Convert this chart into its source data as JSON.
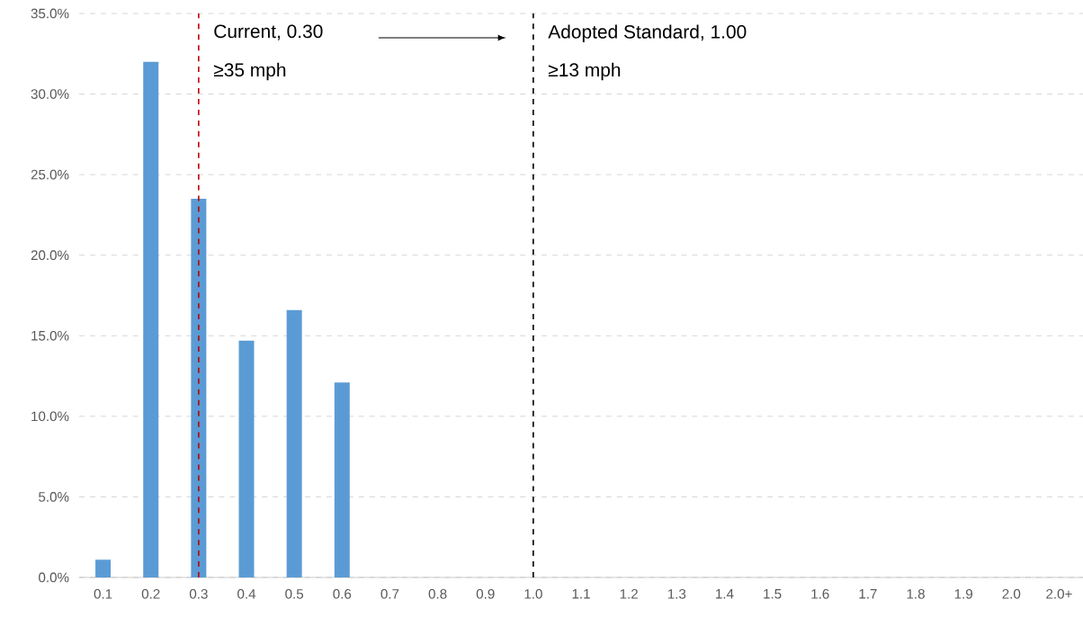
{
  "chart_data": {
    "type": "bar",
    "x": [
      0.1,
      0.2,
      0.3,
      0.4,
      0.5,
      0.6,
      0.7,
      0.8,
      0.9,
      1.0,
      1.1,
      1.2,
      1.3,
      1.4,
      1.5,
      1.6,
      1.7,
      1.8,
      1.9,
      2.0,
      2.1
    ],
    "values": [
      1.1,
      32.0,
      23.5,
      14.7,
      16.6,
      12.1,
      0,
      0,
      0,
      0,
      0,
      0,
      0,
      0,
      0,
      0,
      0,
      0,
      0,
      0,
      0
    ],
    "color": "#5b9bd5",
    "xlim": [
      0.05,
      2.15
    ],
    "xticks": [
      0.1,
      0.2,
      0.3,
      0.4,
      0.5,
      0.6,
      0.7,
      0.8,
      0.9,
      {
        "value": 1.0,
        "label": "1.0"
      },
      1.1,
      1.2,
      1.3,
      1.4,
      1.5,
      1.6,
      1.7,
      1.8,
      1.9,
      {
        "value": 2.0,
        "label": "2.0"
      },
      {
        "value": 2.1,
        "label": "2.0+"
      }
    ],
    "ylim": [
      0,
      35
    ],
    "yticks": [
      {
        "value": 0,
        "label": "0.0%"
      },
      {
        "value": 5,
        "label": "5.0%"
      },
      {
        "value": 10,
        "label": "10.0%"
      },
      {
        "value": 15,
        "label": "15.0%"
      },
      {
        "value": 20,
        "label": "20.0%"
      },
      {
        "value": 25,
        "label": "25.0%"
      },
      {
        "value": 30,
        "label": "30.0%"
      },
      {
        "value": 35,
        "label": "35.0%"
      }
    ],
    "grid": "y",
    "ref_lines": [
      {
        "axis": "x",
        "value": 0.3,
        "label": "Current, 0.30",
        "color": "#c00000",
        "line_style": "dashed"
      },
      {
        "axis": "x",
        "value": 1.0,
        "label": "Adopted Standard, 1.00",
        "color": "#000000",
        "line_style": "dashed"
      }
    ],
    "annotations": [
      {
        "text": "≥35 mph",
        "x": 0.3,
        "y": 31.4
      },
      {
        "text": "≥13 mph",
        "x": 1.0,
        "y": 31.4
      }
    ]
  }
}
